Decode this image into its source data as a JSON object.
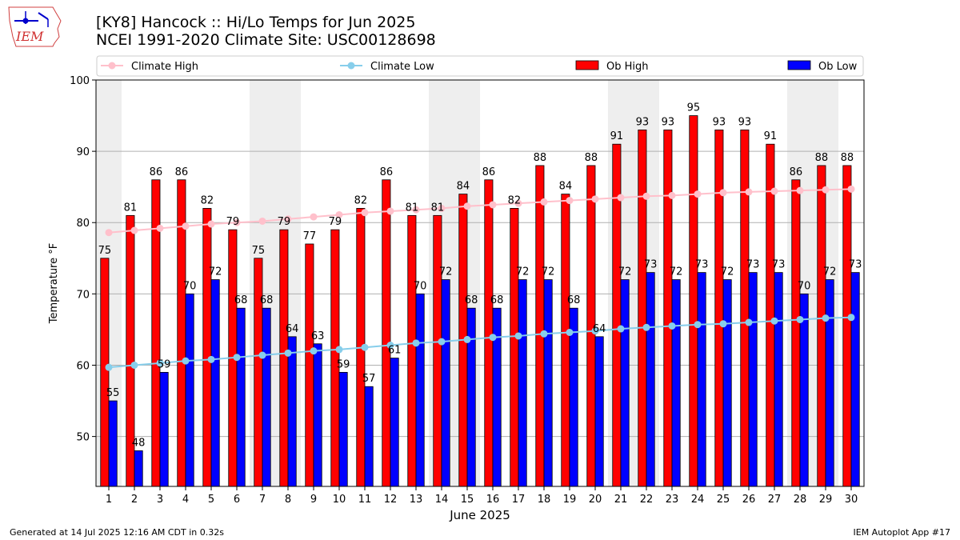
{
  "header": {
    "title_line1": "[KY8] Hancock :: Hi/Lo Temps for Jun 2025",
    "title_line2": "NCEI 1991-2020 Climate Site: USC00128698",
    "logo_text": "IEM"
  },
  "footer": {
    "generated": "Generated at 14 Jul 2025 12:16 AM CDT in 0.32s",
    "app": "IEM Autoplot App #17"
  },
  "colors": {
    "ob_high": "#ff0000",
    "ob_low": "#0000ff",
    "climate_high": "#ffc0cb",
    "climate_low": "#87ceeb",
    "weekend_band": "#eeeeee",
    "grid": "#b0b0b0"
  },
  "chart_data": {
    "type": "bar",
    "xlabel": "June 2025",
    "ylabel": "Temperature °F",
    "ylim": [
      43,
      100
    ],
    "yticks": [
      50,
      60,
      70,
      80,
      90,
      100
    ],
    "grid": "horizontal",
    "legend_position": "top",
    "categories": [
      "1",
      "2",
      "3",
      "4",
      "5",
      "6",
      "7",
      "8",
      "9",
      "10",
      "11",
      "12",
      "13",
      "14",
      "15",
      "16",
      "17",
      "18",
      "19",
      "20",
      "21",
      "22",
      "23",
      "24",
      "25",
      "26",
      "27",
      "28",
      "29",
      "30"
    ],
    "weekend_days": [
      1,
      7,
      8,
      14,
      15,
      21,
      22,
      28,
      29
    ],
    "series": [
      {
        "name": "Ob High",
        "kind": "bar",
        "values": [
          75,
          81,
          86,
          86,
          82,
          79,
          75,
          79,
          77,
          79,
          82,
          86,
          81,
          81,
          84,
          86,
          82,
          88,
          84,
          88,
          91,
          93,
          93,
          95,
          93,
          93,
          91,
          86,
          88,
          88
        ]
      },
      {
        "name": "Ob Low",
        "kind": "bar",
        "values": [
          55,
          48,
          59,
          70,
          72,
          68,
          68,
          64,
          63,
          59,
          57,
          61,
          70,
          72,
          68,
          68,
          72,
          72,
          68,
          64,
          72,
          73,
          72,
          73,
          72,
          73,
          73,
          70,
          72,
          73
        ]
      },
      {
        "name": "Climate High",
        "kind": "line",
        "values": [
          78.6,
          78.9,
          79.2,
          79.5,
          79.8,
          80.0,
          80.2,
          80.5,
          80.8,
          81.1,
          81.4,
          81.6,
          81.8,
          82.0,
          82.3,
          82.5,
          82.7,
          82.9,
          83.1,
          83.3,
          83.5,
          83.7,
          83.8,
          84.0,
          84.2,
          84.3,
          84.4,
          84.5,
          84.6,
          84.7
        ]
      },
      {
        "name": "Climate Low",
        "kind": "line",
        "values": [
          59.7,
          60.0,
          60.3,
          60.6,
          60.8,
          61.1,
          61.4,
          61.7,
          62.0,
          62.2,
          62.5,
          62.8,
          63.1,
          63.3,
          63.6,
          63.9,
          64.1,
          64.4,
          64.6,
          64.8,
          65.1,
          65.3,
          65.5,
          65.7,
          65.8,
          66.0,
          66.2,
          66.4,
          66.6,
          66.7
        ]
      }
    ]
  }
}
